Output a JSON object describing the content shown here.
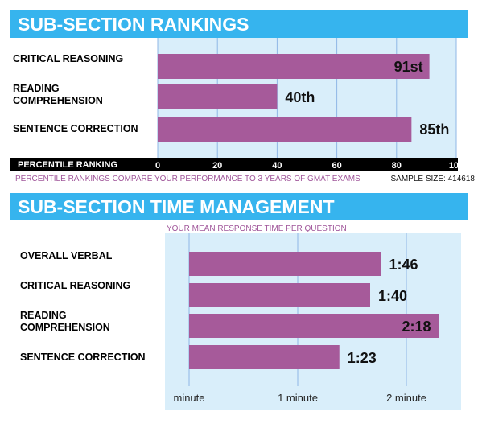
{
  "section1": {
    "title": "SUB-SECTION RANKINGS",
    "axis_title": "PERCENTILE RANKING",
    "note": "PERCENTILE RANKINGS COMPARE YOUR PERFORMANCE TO 3 YEARS OF GMAT EXAMS",
    "sample_size": "SAMPLE SIZE: 414618"
  },
  "section2": {
    "title": "SUB-SECTION TIME MANAGEMENT",
    "subtitle": "YOUR MEAN RESPONSE TIME PER QUESTION"
  },
  "chart_data": [
    {
      "type": "bar",
      "orientation": "horizontal",
      "title": "SUB-SECTION RANKINGS",
      "xlabel": "PERCENTILE RANKING",
      "categories": [
        "CRITICAL REASONING",
        "READING COMPREHENSION",
        "SENTENCE CORRECTION"
      ],
      "values": [
        91,
        40,
        85
      ],
      "value_labels": [
        "91st",
        "40th",
        "85th"
      ],
      "xlim": [
        0,
        100
      ],
      "xticks": [
        "0",
        "20",
        "40",
        "60",
        "80",
        "100"
      ],
      "grid": true,
      "colors": {
        "bar": "#a65a9a",
        "plot_bg": "#d9eefa",
        "grid": "#8fb7e6",
        "banner": "#36b4ee"
      }
    },
    {
      "type": "bar",
      "orientation": "horizontal",
      "title": "SUB-SECTION TIME MANAGEMENT",
      "subtitle": "YOUR MEAN RESPONSE TIME PER QUESTION",
      "categories": [
        "OVERALL VERBAL",
        "CRITICAL REASONING",
        "READING COMPREHENSION",
        "SENTENCE CORRECTION"
      ],
      "values": [
        106,
        100,
        138,
        83
      ],
      "value_labels": [
        "1:46",
        "1:40",
        "2:18",
        "1:23"
      ],
      "xlim": [
        0,
        150
      ],
      "xticks": [
        "minute",
        "1 minute",
        "2 minute"
      ],
      "xtick_values": [
        0,
        60,
        120
      ],
      "grid": true,
      "colors": {
        "bar": "#a65a9a",
        "plot_bg": "#d9eefa",
        "grid": "#8fb7e6",
        "banner": "#36b4ee"
      }
    }
  ]
}
